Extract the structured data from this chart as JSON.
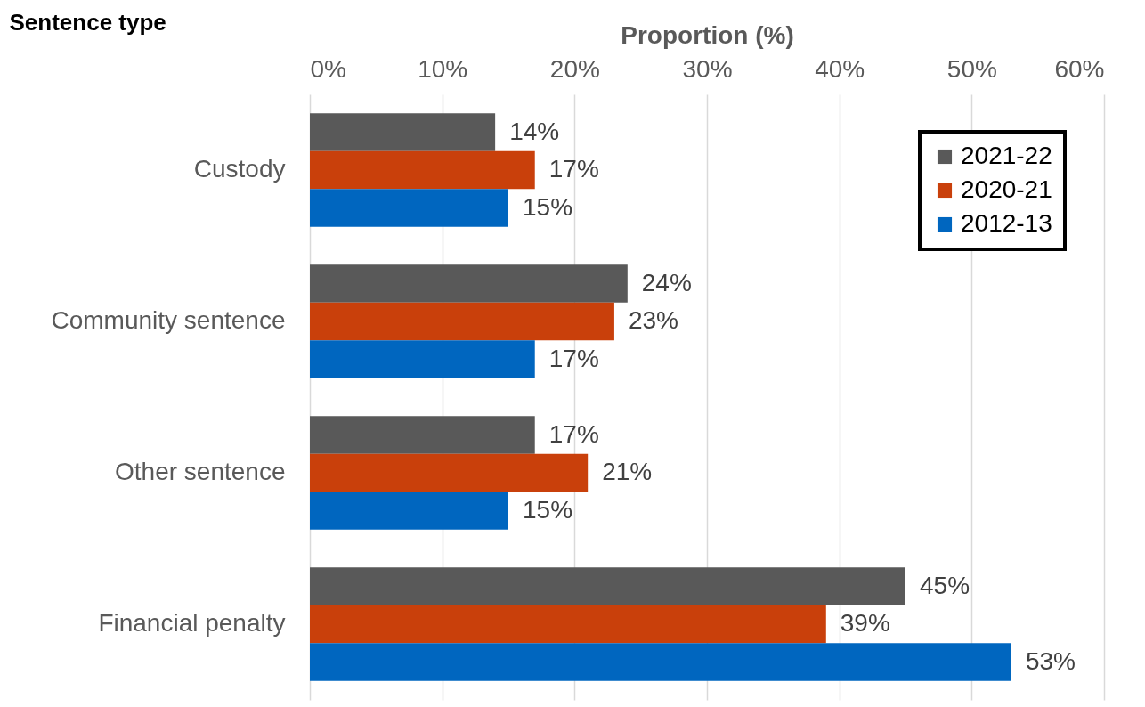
{
  "chart_data": {
    "type": "bar",
    "orientation": "horizontal",
    "xlabel": "Proportion (%)",
    "ylabel": "Sentence type",
    "categories": [
      "Custody",
      "Community sentence",
      "Other sentence",
      "Financial penalty"
    ],
    "series": [
      {
        "name": "2021-22",
        "color": "#595959",
        "values": [
          14,
          24,
          17,
          45
        ],
        "value_labels": [
          "14%",
          "24%",
          "17%",
          "45%"
        ]
      },
      {
        "name": "2020-21",
        "color": "#c9400b",
        "values": [
          17,
          23,
          21,
          39
        ],
        "value_labels": [
          "17%",
          "23%",
          "21%",
          "39%"
        ]
      },
      {
        "name": "2012-13",
        "color": "#0066bf",
        "values": [
          15,
          17,
          15,
          53
        ],
        "value_labels": [
          "15%",
          "17%",
          "15%",
          "53%"
        ]
      }
    ],
    "xlim": [
      0,
      60
    ],
    "xticks": [
      {
        "value": 0,
        "label": "0%"
      },
      {
        "value": 10,
        "label": "10%"
      },
      {
        "value": 20,
        "label": "20%"
      },
      {
        "value": 30,
        "label": "30%"
      },
      {
        "value": 40,
        "label": "40%"
      },
      {
        "value": 50,
        "label": "50%"
      },
      {
        "value": 60,
        "label": "60%"
      }
    ],
    "grid": "x",
    "legend": "top right"
  }
}
